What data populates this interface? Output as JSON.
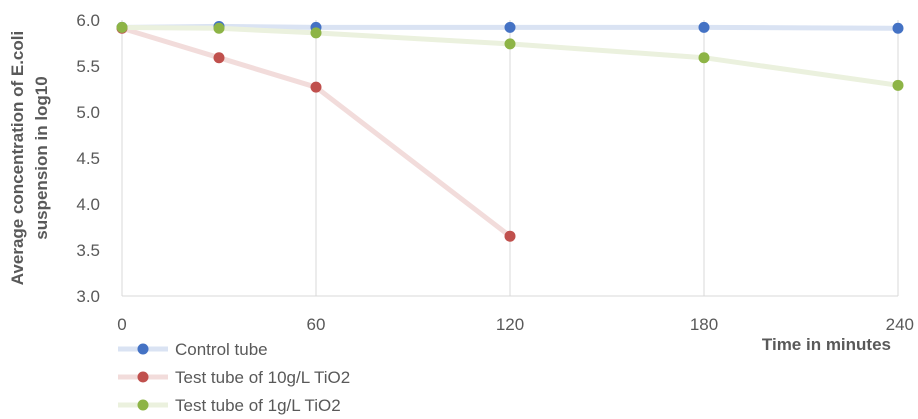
{
  "chart_data": {
    "type": "line",
    "xlabel": "Time in minutes",
    "ylabel": [
      "Average concentration of E.coli",
      "suspension in log10"
    ],
    "xlim": [
      0,
      240
    ],
    "ylim": [
      3.0,
      6.0
    ],
    "xticks": [
      0,
      60,
      120,
      180,
      240
    ],
    "xtick_labels": [
      "0",
      "60",
      "120",
      "180",
      "240"
    ],
    "yticks": [
      3.0,
      3.5,
      4.0,
      4.5,
      5.0,
      5.5,
      6.0
    ],
    "ytick_labels": [
      "3.0",
      "3.5",
      "4.0",
      "4.5",
      "5.0",
      "5.5",
      "6.0"
    ],
    "grid": "vertical",
    "legend": "bottom-left",
    "series": [
      {
        "name": "Control tube",
        "marker_color": "#4472C4",
        "line_color": "#DAE3F3",
        "x": [
          0,
          30,
          60,
          120,
          180,
          240
        ],
        "y": [
          5.92,
          5.93,
          5.92,
          5.92,
          5.92,
          5.91
        ]
      },
      {
        "name": "Test tube of 10g/L TiO2",
        "marker_color": "#C0504D",
        "line_color": "#F2DCDB",
        "x": [
          0,
          30,
          60,
          120
        ],
        "y": [
          5.91,
          5.59,
          5.27,
          3.65
        ]
      },
      {
        "name": "Test tube of 1g/L TiO2",
        "marker_color": "#8DB446",
        "line_color": "#EBF1DE",
        "x": [
          0,
          30,
          60,
          120,
          180,
          240
        ],
        "y": [
          5.92,
          5.91,
          5.86,
          5.74,
          5.59,
          5.29
        ]
      }
    ]
  }
}
